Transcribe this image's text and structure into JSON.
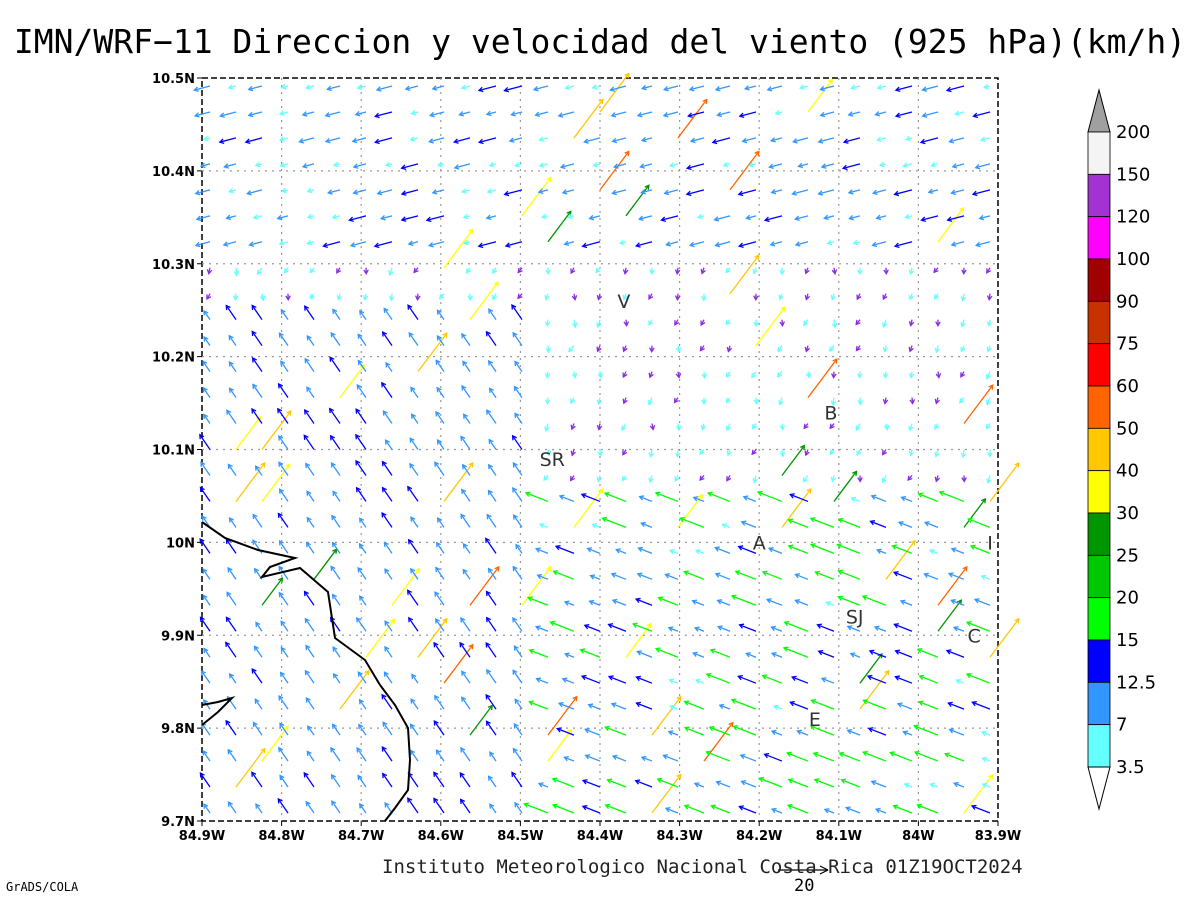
{
  "title": "IMN/WRF−11 Direccion y velocidad del viento (925 hPa)(km/h)",
  "footer": "Instituto Meteorologico Nacional Costa Rica 01Z19OCT2024",
  "credit": "GrADS/COLA",
  "reference_vector": {
    "label": "20"
  },
  "map": {
    "x_ticks": [
      "84.9W",
      "84.8W",
      "84.7W",
      "84.6W",
      "84.5W",
      "84.4W",
      "84.3W",
      "84.2W",
      "84.1W",
      "84W",
      "83.9W"
    ],
    "y_ticks": [
      "10.5N",
      "10.4N",
      "10.3N",
      "10.2N",
      "10.1N",
      "10N",
      "9.9N",
      "9.8N",
      "9.7N"
    ],
    "lon_range": [
      -84.9,
      -83.9
    ],
    "lat_range": [
      9.7,
      10.5
    ],
    "grid": "dotted",
    "places": [
      {
        "label": "V",
        "lon": -84.37,
        "lat": 10.26
      },
      {
        "label": "B",
        "lon": -84.11,
        "lat": 10.14
      },
      {
        "label": "SR",
        "lon": -84.46,
        "lat": 10.09
      },
      {
        "label": "A",
        "lon": -84.2,
        "lat": 10.0
      },
      {
        "label": "I",
        "lon": -83.91,
        "lat": 10.0
      },
      {
        "label": "SJ",
        "lon": -84.08,
        "lat": 9.92
      },
      {
        "label": "C",
        "lon": -83.93,
        "lat": 9.9
      },
      {
        "label": "E",
        "lon": -84.13,
        "lat": 9.81
      }
    ]
  },
  "colorbar": {
    "labels": [
      "200",
      "150",
      "120",
      "100",
      "90",
      "75",
      "60",
      "50",
      "40",
      "30",
      "25",
      "20",
      "15",
      "12.5",
      "7",
      "3.5"
    ],
    "colors": [
      "#a0a0a0",
      "#f4f4f4",
      "#a232d2",
      "#ff00ff",
      "#a00000",
      "#c83200",
      "#ff0000",
      "#ff6400",
      "#ffc800",
      "#ffff00",
      "#009600",
      "#00c800",
      "#00ff00",
      "#0000ff",
      "#3296ff",
      "#64ffff",
      "#ffffff"
    ]
  },
  "speed_colors": [
    "#64ffff",
    "#3296ff",
    "#0000ff",
    "#00ff00",
    "#00c800",
    "#009600",
    "#ffff00",
    "#ffc800",
    "#ff6400",
    "#ff0000",
    "#c83200",
    "#a00000",
    "#ff00ff",
    "#a232d2"
  ],
  "speed_thresholds": [
    3.5,
    7,
    12.5,
    15,
    20,
    25,
    30,
    40,
    50,
    60,
    75,
    90,
    100,
    120,
    150
  ]
}
